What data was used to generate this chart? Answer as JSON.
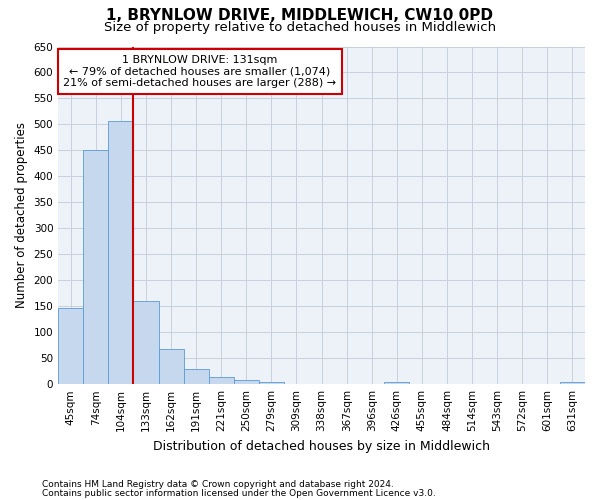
{
  "title": "1, BRYNLOW DRIVE, MIDDLEWICH, CW10 0PD",
  "subtitle": "Size of property relative to detached houses in Middlewich",
  "xlabel": "Distribution of detached houses by size in Middlewich",
  "ylabel": "Number of detached properties",
  "categories": [
    "45sqm",
    "74sqm",
    "104sqm",
    "133sqm",
    "162sqm",
    "191sqm",
    "221sqm",
    "250sqm",
    "279sqm",
    "309sqm",
    "338sqm",
    "367sqm",
    "396sqm",
    "426sqm",
    "455sqm",
    "484sqm",
    "514sqm",
    "543sqm",
    "572sqm",
    "601sqm",
    "631sqm"
  ],
  "values": [
    147,
    450,
    507,
    160,
    67,
    30,
    13,
    8,
    5,
    0,
    0,
    0,
    0,
    5,
    0,
    0,
    0,
    0,
    0,
    0,
    5
  ],
  "bar_color": "#c5d8ed",
  "bar_edge_color": "#5b9bd5",
  "property_line_color": "#cc0000",
  "property_line_index": 3,
  "annotation_text_line1": "1 BRYNLOW DRIVE: 131sqm",
  "annotation_text_line2": "← 79% of detached houses are smaller (1,074)",
  "annotation_text_line3": "21% of semi-detached houses are larger (288) →",
  "annotation_box_color": "#cc0000",
  "ylim": [
    0,
    650
  ],
  "yticks": [
    0,
    50,
    100,
    150,
    200,
    250,
    300,
    350,
    400,
    450,
    500,
    550,
    600,
    650
  ],
  "footnote1": "Contains HM Land Registry data © Crown copyright and database right 2024.",
  "footnote2": "Contains public sector information licensed under the Open Government Licence v3.0.",
  "background_color": "#ffffff",
  "plot_bg_color": "#edf2f9",
  "grid_color": "#c8d0de",
  "title_fontsize": 11,
  "subtitle_fontsize": 9.5,
  "tick_fontsize": 7.5,
  "ylabel_fontsize": 8.5,
  "xlabel_fontsize": 9,
  "annotation_fontsize": 8,
  "footnote_fontsize": 6.5
}
